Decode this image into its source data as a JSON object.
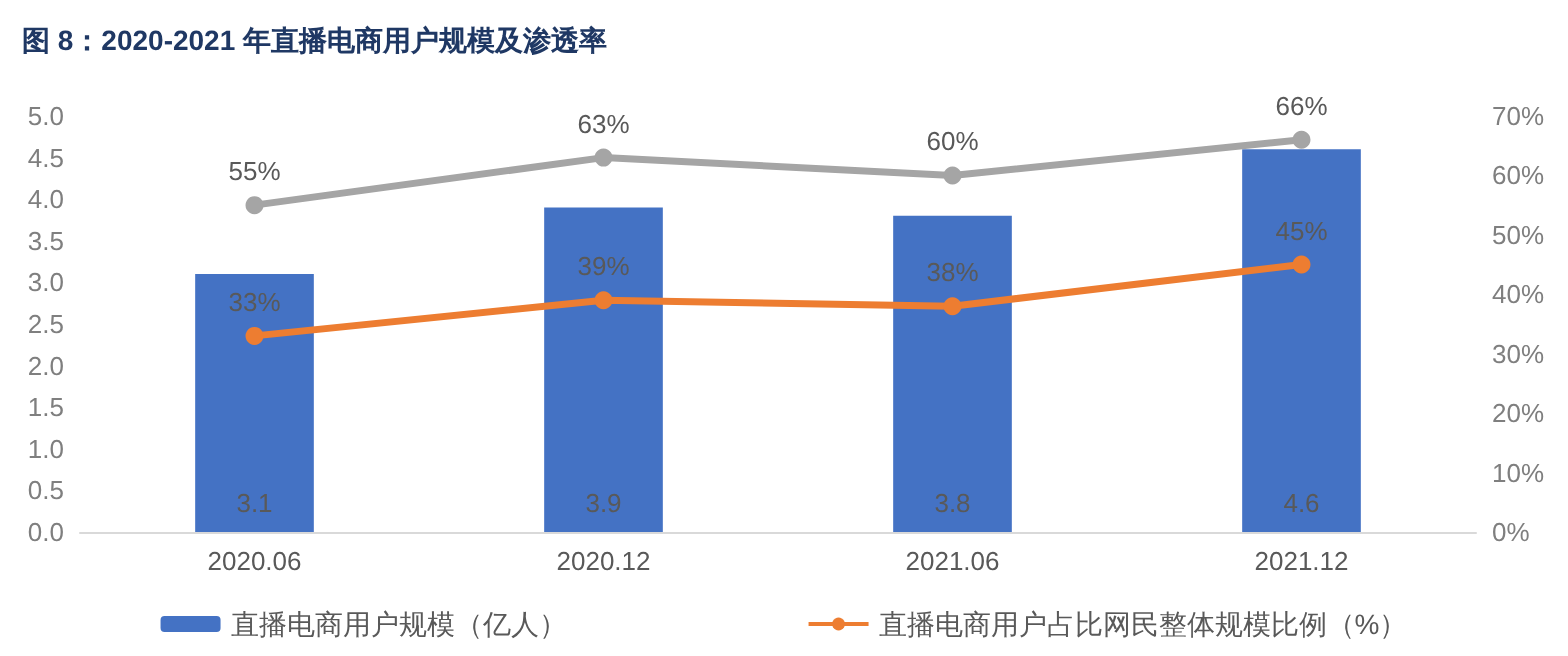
{
  "chart_data": {
    "type": "bar",
    "title": "图 8：2020-2021 年直播电商用户规模及渗透率",
    "categories": [
      "2020.06",
      "2020.12",
      "2021.06",
      "2021.12"
    ],
    "series": [
      {
        "name": "直播电商用户规模（亿人）",
        "color": "#4472c4",
        "values": [
          3.1,
          3.9,
          3.8,
          4.6
        ],
        "value_labels": [
          "3.1",
          "3.9",
          "3.8",
          "4.6"
        ]
      },
      {
        "name": "直播电商用户占比网民整体规模比例（%）",
        "type": "line",
        "axis": "y2",
        "color": "#ed7d31",
        "values": [
          33,
          39,
          38,
          45
        ],
        "value_labels": [
          "33%",
          "39%",
          "38%",
          "45%"
        ]
      },
      {
        "type": "line",
        "axis": "y2",
        "color": "#a5a5a5",
        "values": [
          55,
          63,
          60,
          66
        ],
        "value_labels": [
          "55%",
          "63%",
          "60%",
          "66%"
        ]
      }
    ],
    "ylim": [
      0,
      5
    ],
    "yticks": [
      {
        "value": 0,
        "label": "0.0"
      },
      {
        "value": 0.5,
        "label": "0.5"
      },
      {
        "value": 1,
        "label": "1.0"
      },
      {
        "value": 1.5,
        "label": "1.5"
      },
      {
        "value": 2,
        "label": "2.0"
      },
      {
        "value": 2.5,
        "label": "2.5"
      },
      {
        "value": 3,
        "label": "3.0"
      },
      {
        "value": 3.5,
        "label": "3.5"
      },
      {
        "value": 4,
        "label": "4.0"
      },
      {
        "value": 4.5,
        "label": "4.5"
      },
      {
        "value": 5,
        "label": "5.0"
      }
    ],
    "y2lim": [
      0,
      70
    ],
    "y2ticks": [
      {
        "value": 0,
        "label": "0%"
      },
      {
        "value": 10,
        "label": "10%"
      },
      {
        "value": 20,
        "label": "20%"
      },
      {
        "value": 30,
        "label": "30%"
      },
      {
        "value": 40,
        "label": "40%"
      },
      {
        "value": 50,
        "label": "50%"
      },
      {
        "value": 60,
        "label": "60%"
      },
      {
        "value": 70,
        "label": "70%"
      }
    ],
    "marker": "circle",
    "grid": false,
    "legend": "bottom"
  }
}
